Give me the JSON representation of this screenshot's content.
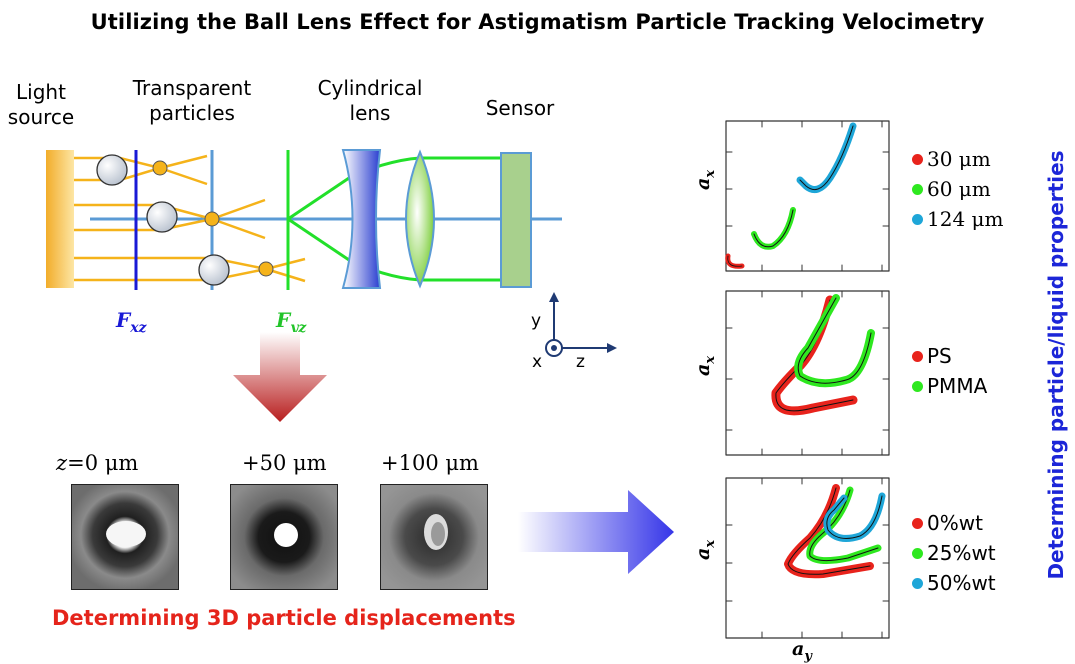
{
  "title": "Utilizing the Ball Lens Effect for Astigmatism Particle Tracking Velocimetry",
  "setup": {
    "labels": {
      "light_source": "Light source",
      "particles": "Transparent particles",
      "cyl_lens": "Cylindrical lens",
      "sensor": "Sensor"
    },
    "focal_labels": {
      "fxz": "F",
      "fxz_sub": "xz",
      "fyz": "F",
      "fyz_sub": "yz"
    },
    "axes": {
      "y": "y",
      "x": "x",
      "z": "z"
    }
  },
  "images": {
    "labels": [
      "z=0 μm",
      "+50 μm",
      "+100 μm"
    ]
  },
  "caption_bottom": "Determining 3D particle displacements",
  "caption_side": "Determining particle/liquid properties",
  "plots": {
    "x_axis_label": "a",
    "x_axis_sub": "y",
    "y_axis_label": "a",
    "y_axis_sub": "x",
    "panels": [
      {
        "legend": [
          {
            "label": "30 μm",
            "color": "#e8231c"
          },
          {
            "label": "60 μm",
            "color": "#2ee81f"
          },
          {
            "label": "124 μm",
            "color": "#1ea6d8"
          }
        ]
      },
      {
        "legend": [
          {
            "label": "PS",
            "color": "#e8231c"
          },
          {
            "label": "PMMA",
            "color": "#2ee81f"
          }
        ]
      },
      {
        "legend": [
          {
            "label": "0%wt",
            "color": "#e8231c"
          },
          {
            "label": "25%wt",
            "color": "#2ee81f"
          },
          {
            "label": "50%wt",
            "color": "#1ea6d8"
          }
        ]
      }
    ]
  }
}
